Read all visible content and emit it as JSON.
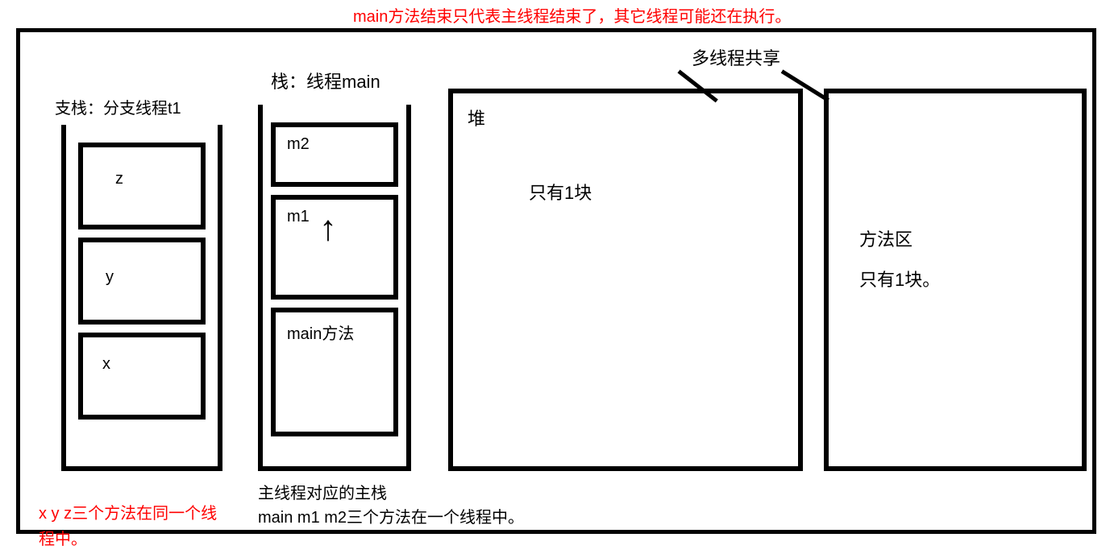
{
  "colors": {
    "border": "#000000",
    "text": "#000000",
    "highlight": "#ff0000",
    "background": "#ffffff"
  },
  "topNote": "main方法结束只代表主线程结束了，其它线程可能还在执行。",
  "stackT1": {
    "label": "支栈：分支线程t1",
    "frames": [
      "z",
      "y",
      "x"
    ]
  },
  "stackMain": {
    "label": "栈：线程main",
    "frames": [
      "m2",
      "m1",
      "main方法"
    ],
    "arrow": "↑"
  },
  "sharedLabel": "多线程共享",
  "heap": {
    "title": "堆",
    "text": "只有1块"
  },
  "methodArea": {
    "title": "方法区",
    "text": "只有1块。"
  },
  "noteXyz": "x y z三个方法在同一个线程中。",
  "noteMain": {
    "line1": "主线程对应的主栈",
    "line2": "main m1 m2三个方法在一个线程中。"
  }
}
